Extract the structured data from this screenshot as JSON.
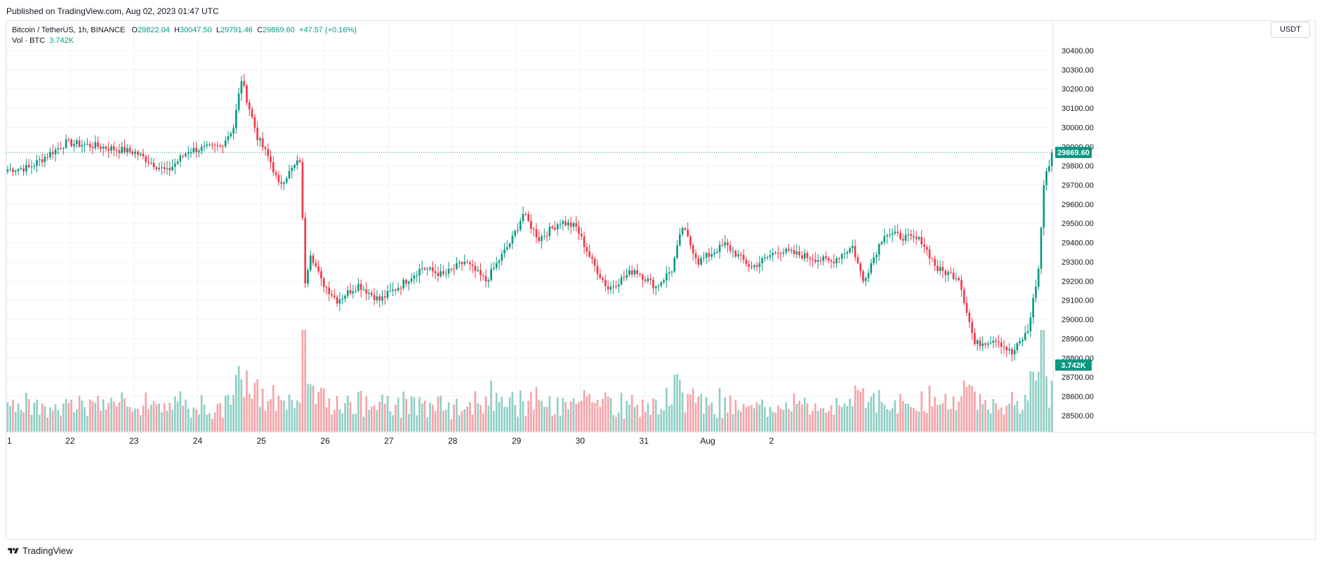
{
  "header": {
    "published": "Published on TradingView.com, Aug 02, 2023 01:47 UTC"
  },
  "legend": {
    "title": "Bitcoin / TetherUS, 1h, BINANCE",
    "open_label": "O",
    "open": "29822.04",
    "high_label": "H",
    "high": "30047.50",
    "low_label": "L",
    "low": "29791.46",
    "close_label": "C",
    "close": "29869.60",
    "change": "+47.57 (+0.16%)",
    "vol_label": "Vol · BTC",
    "vol_value": "3.742K"
  },
  "currency_button": "USDT",
  "footer": {
    "brand": "TradingView",
    "logo_icon": "tradingview-logo-icon"
  },
  "colors": {
    "up": "#089981",
    "down": "#f23645",
    "vol_up": "#8fcfc5",
    "vol_down": "#f5a3a7",
    "grid": "#f0f3fa"
  },
  "chart_data": {
    "type": "candlestick",
    "symbol": "Bitcoin / TetherUS, 1h, BINANCE",
    "interval": "1h",
    "ylim": [
      28420,
      30480
    ],
    "y_ticks": [
      28500,
      28600,
      28700,
      28800,
      28900,
      29000,
      29100,
      29200,
      29300,
      29400,
      29500,
      29600,
      29700,
      29800,
      29900,
      30000,
      30100,
      30200,
      30300,
      30400
    ],
    "x_ticks": [
      "1",
      "22",
      "23",
      "24",
      "25",
      "26",
      "27",
      "28",
      "29",
      "30",
      "31",
      "Aug",
      "2"
    ],
    "last_price": 29869.6,
    "last_price_label": "29869.60",
    "last_volume_label": "3.742K",
    "volume_ylim_k": [
      0,
      5.2
    ],
    "grid": true,
    "key_points": [
      {
        "t": 0,
        "p": 29780
      },
      {
        "t": 8,
        "p": 29790
      },
      {
        "t": 22,
        "p": 29920
      },
      {
        "t": 35,
        "p": 29900
      },
      {
        "t": 48,
        "p": 29870
      },
      {
        "t": 56,
        "p": 29800
      },
      {
        "t": 60,
        "p": 29770
      },
      {
        "t": 68,
        "p": 29880
      },
      {
        "t": 80,
        "p": 29900
      },
      {
        "t": 85,
        "p": 30000
      },
      {
        "t": 88,
        "p": 30250
      },
      {
        "t": 92,
        "p": 30050
      },
      {
        "t": 94,
        "p": 29950
      },
      {
        "t": 99,
        "p": 29820
      },
      {
        "t": 102,
        "p": 29700
      },
      {
        "t": 110,
        "p": 29830
      },
      {
        "t": 112,
        "p": 29200
      },
      {
        "t": 114,
        "p": 29350
      },
      {
        "t": 118,
        "p": 29200
      },
      {
        "t": 124,
        "p": 29100
      },
      {
        "t": 132,
        "p": 29180
      },
      {
        "t": 140,
        "p": 29100
      },
      {
        "t": 148,
        "p": 29180
      },
      {
        "t": 156,
        "p": 29270
      },
      {
        "t": 164,
        "p": 29230
      },
      {
        "t": 172,
        "p": 29300
      },
      {
        "t": 180,
        "p": 29200
      },
      {
        "t": 190,
        "p": 29420
      },
      {
        "t": 194,
        "p": 29550
      },
      {
        "t": 200,
        "p": 29420
      },
      {
        "t": 208,
        "p": 29510
      },
      {
        "t": 214,
        "p": 29480
      },
      {
        "t": 220,
        "p": 29300
      },
      {
        "t": 226,
        "p": 29160
      },
      {
        "t": 236,
        "p": 29260
      },
      {
        "t": 244,
        "p": 29170
      },
      {
        "t": 250,
        "p": 29260
      },
      {
        "t": 254,
        "p": 29480
      },
      {
        "t": 260,
        "p": 29300
      },
      {
        "t": 270,
        "p": 29390
      },
      {
        "t": 280,
        "p": 29270
      },
      {
        "t": 290,
        "p": 29360
      },
      {
        "t": 300,
        "p": 29330
      },
      {
        "t": 310,
        "p": 29300
      },
      {
        "t": 318,
        "p": 29380
      },
      {
        "t": 322,
        "p": 29200
      },
      {
        "t": 330,
        "p": 29450
      },
      {
        "t": 344,
        "p": 29410
      },
      {
        "t": 350,
        "p": 29260
      },
      {
        "t": 358,
        "p": 29220
      },
      {
        "t": 364,
        "p": 28870
      },
      {
        "t": 372,
        "p": 28900
      },
      {
        "t": 378,
        "p": 28820
      },
      {
        "t": 384,
        "p": 28940
      },
      {
        "t": 388,
        "p": 29260
      },
      {
        "t": 390,
        "p": 29700
      },
      {
        "t": 393,
        "p": 29870
      }
    ]
  }
}
